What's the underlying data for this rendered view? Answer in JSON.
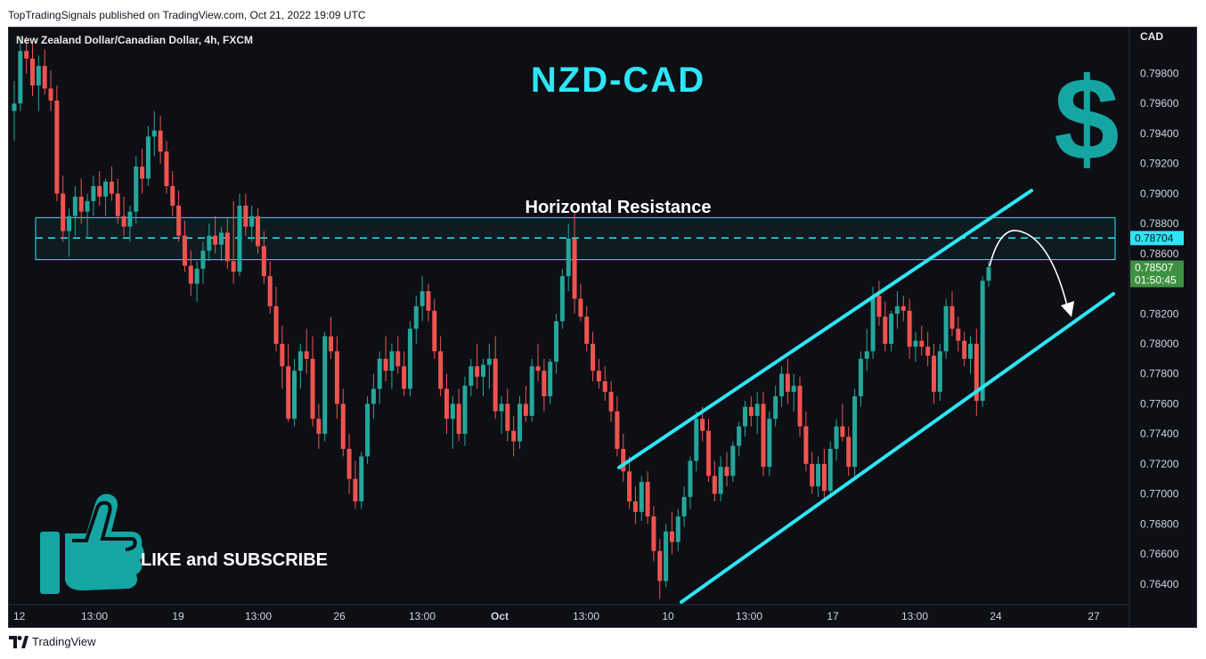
{
  "header": {
    "published_text": "TopTradingSignals published on TradingView.com, Oct 21, 2022 19:09 UTC"
  },
  "chart_title": "New Zealand Dollar/Canadian Dollar, 4h, FXCM",
  "overlay": {
    "big_title": "NZD-CAD",
    "resistance_label": "Horizontal Resistance",
    "cta_text": "LIKE and SUBSCRIBE"
  },
  "colors": {
    "up": "#26a69a",
    "down": "#ef5350",
    "accent": "#2fe5f5",
    "badge_resistance": "#2fe5f5",
    "badge_current": "#3f9142",
    "icon_teal": "#15a6a3"
  },
  "icons": [
    "dollar-icon",
    "thumbs-up-icon",
    "tradingview-logo-icon"
  ],
  "footer": {
    "brand": "TradingView"
  },
  "chart_data": {
    "type": "candlestick",
    "currency": "CAD",
    "timeframe": "4h",
    "ylim": [
      0.7628,
      0.8007
    ],
    "y_ticks": [
      "0.79800",
      "0.79600",
      "0.79400",
      "0.79200",
      "0.79000",
      "0.78800",
      "0.78600",
      "0.78200",
      "0.78000",
      "0.77800",
      "0.77600",
      "0.77400",
      "0.77200",
      "0.77000",
      "0.76800",
      "0.76600",
      "0.76400"
    ],
    "x_ticks": [
      "12",
      "13:00",
      "19",
      "13:00",
      "26",
      "13:00",
      "Oct",
      "13:00",
      "10",
      "13:00",
      "17",
      "13:00",
      "24",
      "27"
    ],
    "price_badges": [
      {
        "label": "0.78704",
        "value": 0.78704,
        "sub": ""
      },
      {
        "label": "0.78507",
        "value": 0.78507,
        "sub": "01:50:45"
      }
    ],
    "resistance_zone": {
      "top": 0.7884,
      "bottom": 0.7856,
      "dashed_level": 0.78704
    },
    "channel": {
      "upper": [
        [
          "2022-10-04 12:00",
          0.7721
        ],
        [
          "2022-10-25 04:00",
          0.7901
        ]
      ],
      "lower": [
        [
          "2022-10-10 16:00",
          0.7628
        ],
        [
          "2022-10-27 08:00",
          0.7831
        ]
      ]
    },
    "projection_arrow": {
      "from": 0.7851,
      "peak": 0.7874,
      "to": 0.7819
    },
    "candles": [
      {
        "o": 0.7955,
        "h": 0.7975,
        "l": 0.7935,
        "c": 0.796
      },
      {
        "o": 0.796,
        "h": 0.8005,
        "l": 0.7955,
        "c": 0.7995
      },
      {
        "o": 0.7995,
        "h": 0.8005,
        "l": 0.798,
        "c": 0.799
      },
      {
        "o": 0.799,
        "h": 0.8,
        "l": 0.7965,
        "c": 0.7972
      },
      {
        "o": 0.7972,
        "h": 0.7992,
        "l": 0.7955,
        "c": 0.7985
      },
      {
        "o": 0.7985,
        "h": 0.7996,
        "l": 0.7966,
        "c": 0.797
      },
      {
        "o": 0.797,
        "h": 0.7982,
        "l": 0.7955,
        "c": 0.7962
      },
      {
        "o": 0.7962,
        "h": 0.7972,
        "l": 0.7895,
        "c": 0.79
      },
      {
        "o": 0.79,
        "h": 0.7912,
        "l": 0.7868,
        "c": 0.7875
      },
      {
        "o": 0.7875,
        "h": 0.789,
        "l": 0.7858,
        "c": 0.7885
      },
      {
        "o": 0.7885,
        "h": 0.7905,
        "l": 0.7872,
        "c": 0.7898
      },
      {
        "o": 0.7898,
        "h": 0.791,
        "l": 0.788,
        "c": 0.7888
      },
      {
        "o": 0.7888,
        "h": 0.79,
        "l": 0.787,
        "c": 0.7895
      },
      {
        "o": 0.7895,
        "h": 0.7912,
        "l": 0.7885,
        "c": 0.7905
      },
      {
        "o": 0.7905,
        "h": 0.7915,
        "l": 0.7892,
        "c": 0.7898
      },
      {
        "o": 0.7898,
        "h": 0.791,
        "l": 0.7885,
        "c": 0.7908
      },
      {
        "o": 0.7908,
        "h": 0.7918,
        "l": 0.7895,
        "c": 0.79
      },
      {
        "o": 0.79,
        "h": 0.791,
        "l": 0.788,
        "c": 0.7885
      },
      {
        "o": 0.7885,
        "h": 0.7898,
        "l": 0.7872,
        "c": 0.7878
      },
      {
        "o": 0.7878,
        "h": 0.7892,
        "l": 0.7868,
        "c": 0.7888
      },
      {
        "o": 0.7888,
        "h": 0.7925,
        "l": 0.788,
        "c": 0.7918
      },
      {
        "o": 0.7918,
        "h": 0.793,
        "l": 0.79,
        "c": 0.791
      },
      {
        "o": 0.791,
        "h": 0.7945,
        "l": 0.7905,
        "c": 0.7938
      },
      {
        "o": 0.7938,
        "h": 0.7955,
        "l": 0.7925,
        "c": 0.7942
      },
      {
        "o": 0.7942,
        "h": 0.7952,
        "l": 0.792,
        "c": 0.7928
      },
      {
        "o": 0.7928,
        "h": 0.7935,
        "l": 0.79,
        "c": 0.7905
      },
      {
        "o": 0.7905,
        "h": 0.7915,
        "l": 0.7885,
        "c": 0.7892
      },
      {
        "o": 0.7892,
        "h": 0.7902,
        "l": 0.7868,
        "c": 0.7872
      },
      {
        "o": 0.7872,
        "h": 0.7882,
        "l": 0.7848,
        "c": 0.7852
      },
      {
        "o": 0.7852,
        "h": 0.7862,
        "l": 0.7832,
        "c": 0.784
      },
      {
        "o": 0.784,
        "h": 0.7855,
        "l": 0.7828,
        "c": 0.785
      },
      {
        "o": 0.785,
        "h": 0.7868,
        "l": 0.784,
        "c": 0.7862
      },
      {
        "o": 0.7862,
        "h": 0.788,
        "l": 0.7855,
        "c": 0.7872
      },
      {
        "o": 0.7872,
        "h": 0.7885,
        "l": 0.786,
        "c": 0.7866
      },
      {
        "o": 0.7866,
        "h": 0.7878,
        "l": 0.7855,
        "c": 0.7874
      },
      {
        "o": 0.7874,
        "h": 0.7884,
        "l": 0.785,
        "c": 0.7855
      },
      {
        "o": 0.7855,
        "h": 0.7895,
        "l": 0.784,
        "c": 0.7848
      },
      {
        "o": 0.7848,
        "h": 0.79,
        "l": 0.7845,
        "c": 0.7892
      },
      {
        "o": 0.7892,
        "h": 0.79,
        "l": 0.7872,
        "c": 0.7878
      },
      {
        "o": 0.7878,
        "h": 0.7892,
        "l": 0.7868,
        "c": 0.7885
      },
      {
        "o": 0.7885,
        "h": 0.789,
        "l": 0.786,
        "c": 0.7865
      },
      {
        "o": 0.7865,
        "h": 0.7875,
        "l": 0.784,
        "c": 0.7845
      },
      {
        "o": 0.7845,
        "h": 0.7855,
        "l": 0.782,
        "c": 0.7825
      },
      {
        "o": 0.7825,
        "h": 0.7838,
        "l": 0.7795,
        "c": 0.78
      },
      {
        "o": 0.78,
        "h": 0.7812,
        "l": 0.777,
        "c": 0.7785
      },
      {
        "o": 0.7785,
        "h": 0.78,
        "l": 0.7748,
        "c": 0.775
      },
      {
        "o": 0.775,
        "h": 0.779,
        "l": 0.7745,
        "c": 0.7782
      },
      {
        "o": 0.7782,
        "h": 0.78,
        "l": 0.777,
        "c": 0.7795
      },
      {
        "o": 0.7795,
        "h": 0.781,
        "l": 0.778,
        "c": 0.779
      },
      {
        "o": 0.779,
        "h": 0.7805,
        "l": 0.7745,
        "c": 0.775
      },
      {
        "o": 0.775,
        "h": 0.776,
        "l": 0.773,
        "c": 0.774
      },
      {
        "o": 0.774,
        "h": 0.7808,
        "l": 0.7735,
        "c": 0.7805
      },
      {
        "o": 0.7805,
        "h": 0.7818,
        "l": 0.779,
        "c": 0.7795
      },
      {
        "o": 0.7795,
        "h": 0.7805,
        "l": 0.775,
        "c": 0.776
      },
      {
        "o": 0.776,
        "h": 0.777,
        "l": 0.7725,
        "c": 0.773
      },
      {
        "o": 0.773,
        "h": 0.774,
        "l": 0.77,
        "c": 0.771
      },
      {
        "o": 0.771,
        "h": 0.7722,
        "l": 0.769,
        "c": 0.7695
      },
      {
        "o": 0.7695,
        "h": 0.7728,
        "l": 0.769,
        "c": 0.7725
      },
      {
        "o": 0.7725,
        "h": 0.7765,
        "l": 0.772,
        "c": 0.776
      },
      {
        "o": 0.776,
        "h": 0.778,
        "l": 0.775,
        "c": 0.777
      },
      {
        "o": 0.777,
        "h": 0.7795,
        "l": 0.776,
        "c": 0.779
      },
      {
        "o": 0.779,
        "h": 0.7805,
        "l": 0.7775,
        "c": 0.7782
      },
      {
        "o": 0.7782,
        "h": 0.78,
        "l": 0.777,
        "c": 0.7795
      },
      {
        "o": 0.7795,
        "h": 0.7805,
        "l": 0.778,
        "c": 0.7785
      },
      {
        "o": 0.7785,
        "h": 0.7795,
        "l": 0.7765,
        "c": 0.777
      },
      {
        "o": 0.777,
        "h": 0.7815,
        "l": 0.7765,
        "c": 0.781
      },
      {
        "o": 0.781,
        "h": 0.7832,
        "l": 0.78,
        "c": 0.7825
      },
      {
        "o": 0.7825,
        "h": 0.7845,
        "l": 0.7815,
        "c": 0.7835
      },
      {
        "o": 0.7835,
        "h": 0.784,
        "l": 0.7815,
        "c": 0.7822
      },
      {
        "o": 0.7822,
        "h": 0.783,
        "l": 0.779,
        "c": 0.7795
      },
      {
        "o": 0.7795,
        "h": 0.7805,
        "l": 0.7765,
        "c": 0.777
      },
      {
        "o": 0.777,
        "h": 0.778,
        "l": 0.774,
        "c": 0.775
      },
      {
        "o": 0.775,
        "h": 0.7765,
        "l": 0.773,
        "c": 0.776
      },
      {
        "o": 0.776,
        "h": 0.777,
        "l": 0.7735,
        "c": 0.774
      },
      {
        "o": 0.774,
        "h": 0.7778,
        "l": 0.7732,
        "c": 0.7772
      },
      {
        "o": 0.7772,
        "h": 0.779,
        "l": 0.7765,
        "c": 0.7785
      },
      {
        "o": 0.7785,
        "h": 0.78,
        "l": 0.777,
        "c": 0.7778
      },
      {
        "o": 0.7778,
        "h": 0.779,
        "l": 0.7765,
        "c": 0.7786
      },
      {
        "o": 0.7786,
        "h": 0.78,
        "l": 0.777,
        "c": 0.779
      },
      {
        "o": 0.779,
        "h": 0.7805,
        "l": 0.775,
        "c": 0.7755
      },
      {
        "o": 0.7755,
        "h": 0.7765,
        "l": 0.774,
        "c": 0.776
      },
      {
        "o": 0.776,
        "h": 0.777,
        "l": 0.7735,
        "c": 0.7742
      },
      {
        "o": 0.7742,
        "h": 0.7752,
        "l": 0.7725,
        "c": 0.7735
      },
      {
        "o": 0.7735,
        "h": 0.7765,
        "l": 0.773,
        "c": 0.776
      },
      {
        "o": 0.776,
        "h": 0.7772,
        "l": 0.7748,
        "c": 0.7752
      },
      {
        "o": 0.7752,
        "h": 0.779,
        "l": 0.7748,
        "c": 0.7785
      },
      {
        "o": 0.7785,
        "h": 0.78,
        "l": 0.7775,
        "c": 0.7782
      },
      {
        "o": 0.7782,
        "h": 0.779,
        "l": 0.7755,
        "c": 0.7765
      },
      {
        "o": 0.7765,
        "h": 0.779,
        "l": 0.776,
        "c": 0.7788
      },
      {
        "o": 0.7788,
        "h": 0.782,
        "l": 0.778,
        "c": 0.7815
      },
      {
        "o": 0.7815,
        "h": 0.785,
        "l": 0.781,
        "c": 0.7845
      },
      {
        "o": 0.7845,
        "h": 0.788,
        "l": 0.7835,
        "c": 0.787
      },
      {
        "o": 0.787,
        "h": 0.7888,
        "l": 0.782,
        "c": 0.783
      },
      {
        "o": 0.783,
        "h": 0.784,
        "l": 0.7815,
        "c": 0.7818
      },
      {
        "o": 0.7818,
        "h": 0.7825,
        "l": 0.7795,
        "c": 0.78
      },
      {
        "o": 0.78,
        "h": 0.7808,
        "l": 0.7775,
        "c": 0.7782
      },
      {
        "o": 0.7782,
        "h": 0.779,
        "l": 0.777,
        "c": 0.7775
      },
      {
        "o": 0.7775,
        "h": 0.7785,
        "l": 0.7762,
        "c": 0.7768
      },
      {
        "o": 0.7768,
        "h": 0.7775,
        "l": 0.7748,
        "c": 0.7755
      },
      {
        "o": 0.7755,
        "h": 0.7765,
        "l": 0.7725,
        "c": 0.773
      },
      {
        "o": 0.773,
        "h": 0.774,
        "l": 0.7708,
        "c": 0.7715
      },
      {
        "o": 0.7715,
        "h": 0.7725,
        "l": 0.769,
        "c": 0.7695
      },
      {
        "o": 0.7695,
        "h": 0.7705,
        "l": 0.768,
        "c": 0.7688
      },
      {
        "o": 0.7688,
        "h": 0.7712,
        "l": 0.7682,
        "c": 0.7708
      },
      {
        "o": 0.7708,
        "h": 0.7715,
        "l": 0.768,
        "c": 0.7685
      },
      {
        "o": 0.7685,
        "h": 0.7692,
        "l": 0.7655,
        "c": 0.7662
      },
      {
        "o": 0.7662,
        "h": 0.767,
        "l": 0.763,
        "c": 0.7642
      },
      {
        "o": 0.7642,
        "h": 0.768,
        "l": 0.7638,
        "c": 0.7675
      },
      {
        "o": 0.7675,
        "h": 0.7688,
        "l": 0.766,
        "c": 0.7668
      },
      {
        "o": 0.7668,
        "h": 0.769,
        "l": 0.7662,
        "c": 0.7685
      },
      {
        "o": 0.7685,
        "h": 0.7705,
        "l": 0.7678,
        "c": 0.7698
      },
      {
        "o": 0.7698,
        "h": 0.7725,
        "l": 0.769,
        "c": 0.7722
      },
      {
        "o": 0.7722,
        "h": 0.7755,
        "l": 0.7715,
        "c": 0.775
      },
      {
        "o": 0.775,
        "h": 0.7758,
        "l": 0.7735,
        "c": 0.7742
      },
      {
        "o": 0.7742,
        "h": 0.775,
        "l": 0.7708,
        "c": 0.7712
      },
      {
        "o": 0.7712,
        "h": 0.7722,
        "l": 0.7695,
        "c": 0.77
      },
      {
        "o": 0.77,
        "h": 0.7725,
        "l": 0.7695,
        "c": 0.7718
      },
      {
        "o": 0.7718,
        "h": 0.7728,
        "l": 0.7705,
        "c": 0.7712
      },
      {
        "o": 0.7712,
        "h": 0.7735,
        "l": 0.7708,
        "c": 0.7732
      },
      {
        "o": 0.7732,
        "h": 0.7748,
        "l": 0.7725,
        "c": 0.7745
      },
      {
        "o": 0.7745,
        "h": 0.7762,
        "l": 0.7738,
        "c": 0.7758
      },
      {
        "o": 0.7758,
        "h": 0.7765,
        "l": 0.7745,
        "c": 0.7752
      },
      {
        "o": 0.7752,
        "h": 0.7768,
        "l": 0.774,
        "c": 0.776
      },
      {
        "o": 0.776,
        "h": 0.7768,
        "l": 0.7712,
        "c": 0.7718
      },
      {
        "o": 0.7718,
        "h": 0.7755,
        "l": 0.7712,
        "c": 0.775
      },
      {
        "o": 0.775,
        "h": 0.7772,
        "l": 0.7745,
        "c": 0.7765
      },
      {
        "o": 0.7765,
        "h": 0.7785,
        "l": 0.7758,
        "c": 0.778
      },
      {
        "o": 0.778,
        "h": 0.779,
        "l": 0.776,
        "c": 0.7768
      },
      {
        "o": 0.7768,
        "h": 0.778,
        "l": 0.7755,
        "c": 0.7772
      },
      {
        "o": 0.7772,
        "h": 0.7778,
        "l": 0.7738,
        "c": 0.7745
      },
      {
        "o": 0.7745,
        "h": 0.7755,
        "l": 0.7715,
        "c": 0.772
      },
      {
        "o": 0.772,
        "h": 0.7728,
        "l": 0.77,
        "c": 0.7705
      },
      {
        "o": 0.7705,
        "h": 0.7725,
        "l": 0.7698,
        "c": 0.772
      },
      {
        "o": 0.772,
        "h": 0.773,
        "l": 0.7695,
        "c": 0.7702
      },
      {
        "o": 0.7702,
        "h": 0.7735,
        "l": 0.7698,
        "c": 0.773
      },
      {
        "o": 0.773,
        "h": 0.775,
        "l": 0.7722,
        "c": 0.7745
      },
      {
        "o": 0.7745,
        "h": 0.776,
        "l": 0.7735,
        "c": 0.7738
      },
      {
        "o": 0.7738,
        "h": 0.7745,
        "l": 0.7712,
        "c": 0.7718
      },
      {
        "o": 0.7718,
        "h": 0.777,
        "l": 0.7712,
        "c": 0.7765
      },
      {
        "o": 0.7765,
        "h": 0.7795,
        "l": 0.7758,
        "c": 0.779
      },
      {
        "o": 0.779,
        "h": 0.781,
        "l": 0.7782,
        "c": 0.7795
      },
      {
        "o": 0.7795,
        "h": 0.7838,
        "l": 0.779,
        "c": 0.7832
      },
      {
        "o": 0.7832,
        "h": 0.7842,
        "l": 0.7812,
        "c": 0.7818
      },
      {
        "o": 0.7818,
        "h": 0.7828,
        "l": 0.7795,
        "c": 0.78
      },
      {
        "o": 0.78,
        "h": 0.7822,
        "l": 0.7795,
        "c": 0.782
      },
      {
        "o": 0.782,
        "h": 0.7835,
        "l": 0.781,
        "c": 0.7825
      },
      {
        "o": 0.7825,
        "h": 0.7832,
        "l": 0.7815,
        "c": 0.7822
      },
      {
        "o": 0.7822,
        "h": 0.783,
        "l": 0.779,
        "c": 0.7798
      },
      {
        "o": 0.7798,
        "h": 0.7808,
        "l": 0.7788,
        "c": 0.7802
      },
      {
        "o": 0.7802,
        "h": 0.7812,
        "l": 0.7792,
        "c": 0.7798
      },
      {
        "o": 0.7798,
        "h": 0.7808,
        "l": 0.7785,
        "c": 0.7792
      },
      {
        "o": 0.7792,
        "h": 0.78,
        "l": 0.776,
        "c": 0.7768
      },
      {
        "o": 0.7768,
        "h": 0.78,
        "l": 0.7762,
        "c": 0.7795
      },
      {
        "o": 0.7795,
        "h": 0.783,
        "l": 0.779,
        "c": 0.7825
      },
      {
        "o": 0.7825,
        "h": 0.7835,
        "l": 0.7805,
        "c": 0.781
      },
      {
        "o": 0.781,
        "h": 0.7818,
        "l": 0.7795,
        "c": 0.7802
      },
      {
        "o": 0.7802,
        "h": 0.7808,
        "l": 0.7785,
        "c": 0.779
      },
      {
        "o": 0.779,
        "h": 0.7805,
        "l": 0.778,
        "c": 0.78
      },
      {
        "o": 0.78,
        "h": 0.781,
        "l": 0.7752,
        "c": 0.7762
      },
      {
        "o": 0.7762,
        "h": 0.7845,
        "l": 0.7758,
        "c": 0.7842
      },
      {
        "o": 0.7842,
        "h": 0.7855,
        "l": 0.7838,
        "c": 0.7851
      }
    ]
  }
}
